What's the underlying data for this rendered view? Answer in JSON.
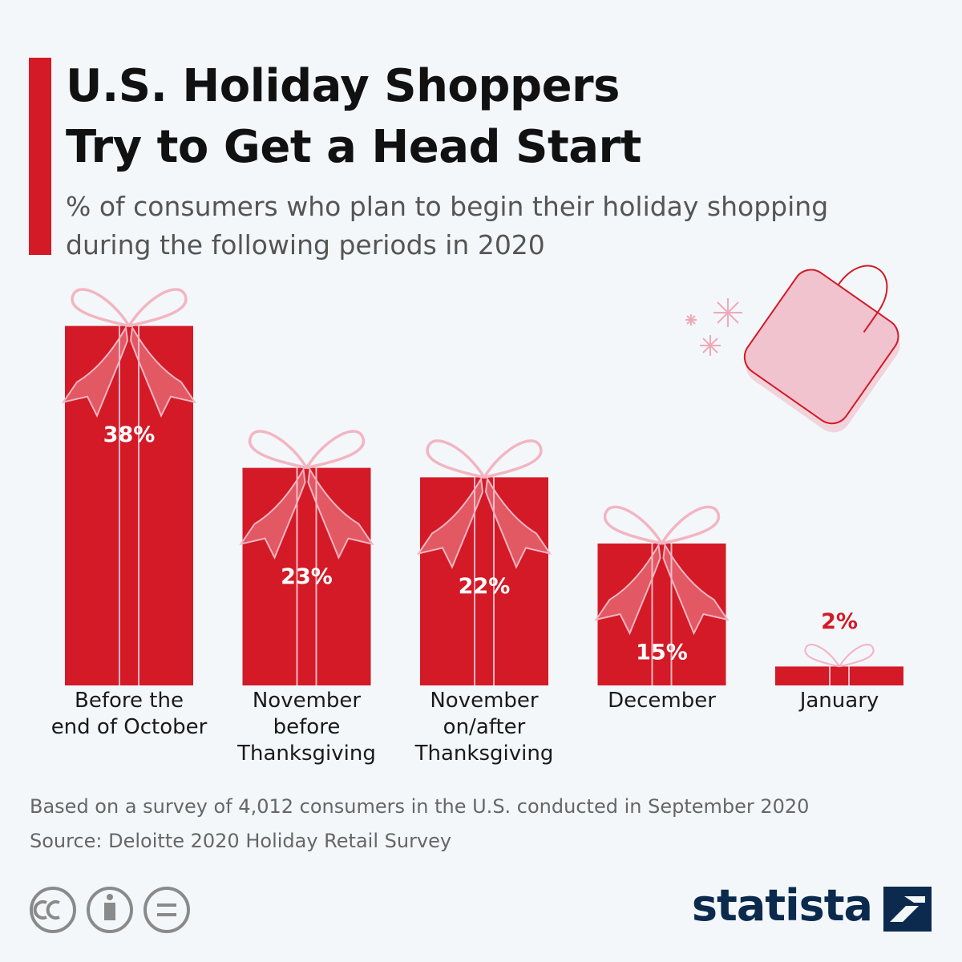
{
  "chart_data": {
    "type": "bar",
    "title": "U.S. Holiday Shoppers\nTry to Get a Head Start",
    "subtitle": "% of consumers who plan to begin their holiday shopping\nduring the following periods in 2020",
    "categories": [
      "Before the\nend of October",
      "November\nbefore\nThanksgiving",
      "November\non/after\nThanksgiving",
      "December",
      "January"
    ],
    "values": [
      38,
      23,
      22,
      15,
      2
    ],
    "value_labels": [
      "38%",
      "23%",
      "22%",
      "15%",
      "2%"
    ],
    "color": "#d31a26",
    "note": "Based on a survey of 4,012 consumers in the U.S. conducted in September 2020",
    "source": "Source: Deloitte 2020 Holiday Retail Survey",
    "brand": "statista"
  }
}
